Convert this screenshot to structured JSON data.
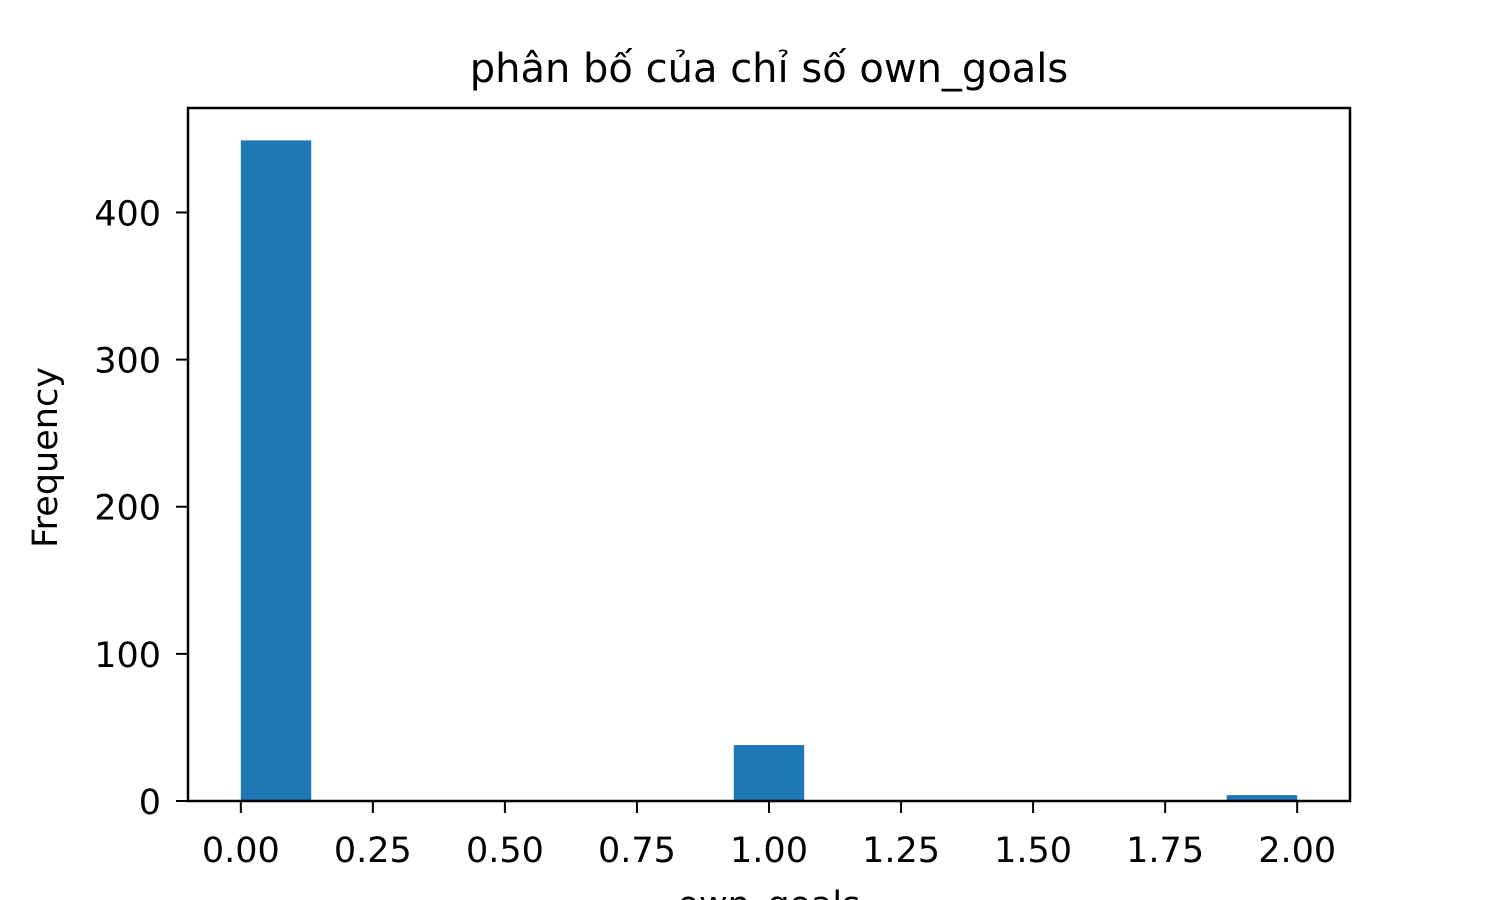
{
  "chart_data": {
    "type": "bar",
    "title": "phân bố của chỉ số own_goals",
    "xlabel": "own_goals",
    "ylabel": "Frequency",
    "bins": [
      {
        "start": 0.0,
        "end": 0.1333,
        "count": 449
      },
      {
        "start": 0.1333,
        "end": 0.2667,
        "count": 0
      },
      {
        "start": 0.2667,
        "end": 0.4,
        "count": 0
      },
      {
        "start": 0.4,
        "end": 0.5333,
        "count": 0
      },
      {
        "start": 0.5333,
        "end": 0.6667,
        "count": 0
      },
      {
        "start": 0.6667,
        "end": 0.8,
        "count": 0
      },
      {
        "start": 0.8,
        "end": 0.9333,
        "count": 0
      },
      {
        "start": 0.9333,
        "end": 1.0667,
        "count": 38
      },
      {
        "start": 1.0667,
        "end": 1.2,
        "count": 0
      },
      {
        "start": 1.2,
        "end": 1.3333,
        "count": 0
      },
      {
        "start": 1.3333,
        "end": 1.4667,
        "count": 0
      },
      {
        "start": 1.4667,
        "end": 1.6,
        "count": 0
      },
      {
        "start": 1.6,
        "end": 1.7333,
        "count": 0
      },
      {
        "start": 1.7333,
        "end": 1.8667,
        "count": 0
      },
      {
        "start": 1.8667,
        "end": 2.0,
        "count": 4
      }
    ],
    "xlim": [
      -0.1,
      2.1
    ],
    "ylim": [
      0,
      471
    ],
    "xticks": [
      0.0,
      0.25,
      0.5,
      0.75,
      1.0,
      1.25,
      1.5,
      1.75,
      2.0
    ],
    "xtick_labels": [
      "0.00",
      "0.25",
      "0.50",
      "0.75",
      "1.00",
      "1.25",
      "1.50",
      "1.75",
      "2.00"
    ],
    "yticks": [
      0,
      100,
      200,
      300,
      400
    ],
    "ytick_labels": [
      "0",
      "100",
      "200",
      "300",
      "400"
    ],
    "bar_color": "#1f77b4",
    "grid": false,
    "legend": "none"
  }
}
